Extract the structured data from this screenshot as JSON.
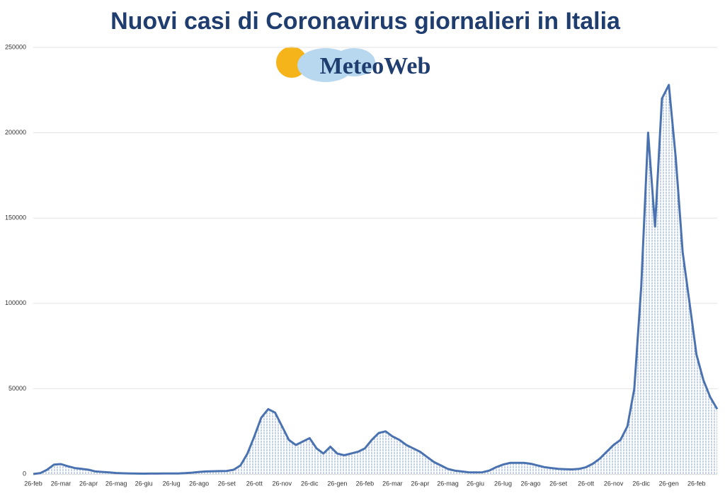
{
  "chart_data": {
    "type": "line",
    "title": "Nuovi casi di Coronavirus giornalieri in Italia",
    "logo": "MeteoWeb",
    "categories": [
      "26-feb",
      null,
      null,
      null,
      "26-mar",
      null,
      null,
      null,
      "26-apr",
      null,
      null,
      null,
      "26-mag",
      null,
      null,
      null,
      "26-giu",
      null,
      null,
      null,
      "26-lug",
      null,
      null,
      null,
      "26-ago",
      null,
      null,
      null,
      "26-set",
      null,
      null,
      null,
      "26-ott",
      null,
      null,
      null,
      "26-nov",
      null,
      null,
      null,
      "26-dic",
      null,
      null,
      null,
      "26-gen",
      null,
      null,
      null,
      "26-feb",
      null,
      null,
      null,
      "26-mar",
      null,
      null,
      null,
      "26-apr",
      null,
      null,
      null,
      "26-mag",
      null,
      null,
      null,
      "26-giu",
      null,
      null,
      null,
      "26-lug",
      null,
      null,
      null,
      "26-ago",
      null,
      null,
      null,
      "26-set",
      null,
      null,
      null,
      "26-ott",
      null,
      null,
      null,
      "26-nov",
      null,
      null,
      null,
      "26-dic",
      null,
      null,
      null,
      "26-gen",
      null,
      null,
      null,
      "26-feb",
      null,
      null,
      null
    ],
    "series": [
      {
        "name": "Nuovi casi",
        "color": "#4a72b0",
        "values": [
          0,
          500,
          2500,
          5500,
          5800,
          4500,
          3500,
          3000,
          2500,
          1500,
          1200,
          900,
          600,
          400,
          300,
          250,
          200,
          250,
          250,
          300,
          300,
          350,
          500,
          800,
          1200,
          1500,
          1600,
          1700,
          1800,
          2500,
          5000,
          12000,
          22000,
          33000,
          38000,
          36000,
          28000,
          20000,
          17000,
          19000,
          21000,
          15000,
          12000,
          16000,
          12000,
          11000,
          12000,
          13000,
          15000,
          20000,
          24000,
          25000,
          22000,
          20000,
          17000,
          15000,
          13000,
          10000,
          7000,
          5000,
          3000,
          2000,
          1500,
          1000,
          900,
          1000,
          2000,
          4000,
          5500,
          6500,
          6500,
          6500,
          6000,
          5000,
          4000,
          3500,
          3000,
          2800,
          2700,
          3000,
          4000,
          6000,
          9000,
          13000,
          17000,
          20000,
          28000,
          50000,
          110000,
          200000,
          145000,
          220000,
          228000,
          185000,
          130000,
          100000,
          70000,
          55000,
          45000,
          38000
        ]
      }
    ],
    "ylim": [
      0,
      250000
    ],
    "yticks": [
      0,
      50000,
      100000,
      150000,
      200000,
      250000
    ],
    "grid": true
  }
}
